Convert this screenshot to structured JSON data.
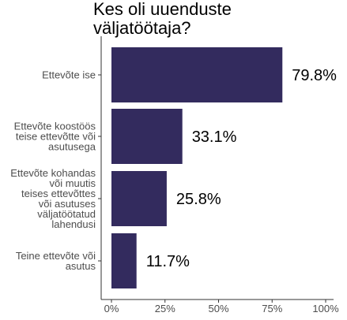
{
  "chart_data": {
    "type": "bar",
    "orientation": "horizontal",
    "title_lines": [
      "Kes oli uuenduste",
      "väljatöötaja?"
    ],
    "categories": [
      [
        "Ettevõte ise"
      ],
      [
        "Ettevõte koostöös",
        "teise ettevõtte või",
        "asutusega"
      ],
      [
        "Ettevõte kohandas",
        "või muutis",
        "teises ettevõttes",
        "või asutuses",
        "väljatöötatud",
        "lahendusi"
      ],
      [
        "Teine ettevõte või",
        "asutus"
      ]
    ],
    "values": [
      79.8,
      33.1,
      25.8,
      11.7
    ],
    "value_labels": [
      "79.8%",
      "33.1%",
      "25.8%",
      "11.7%"
    ],
    "xlim": [
      0,
      100
    ],
    "x_ticks": [
      0,
      25,
      50,
      75,
      100
    ],
    "x_tick_labels": [
      "0%",
      "25%",
      "50%",
      "75%",
      "100%"
    ],
    "bar_color": "#332b5e",
    "grid": false,
    "legend": false
  }
}
